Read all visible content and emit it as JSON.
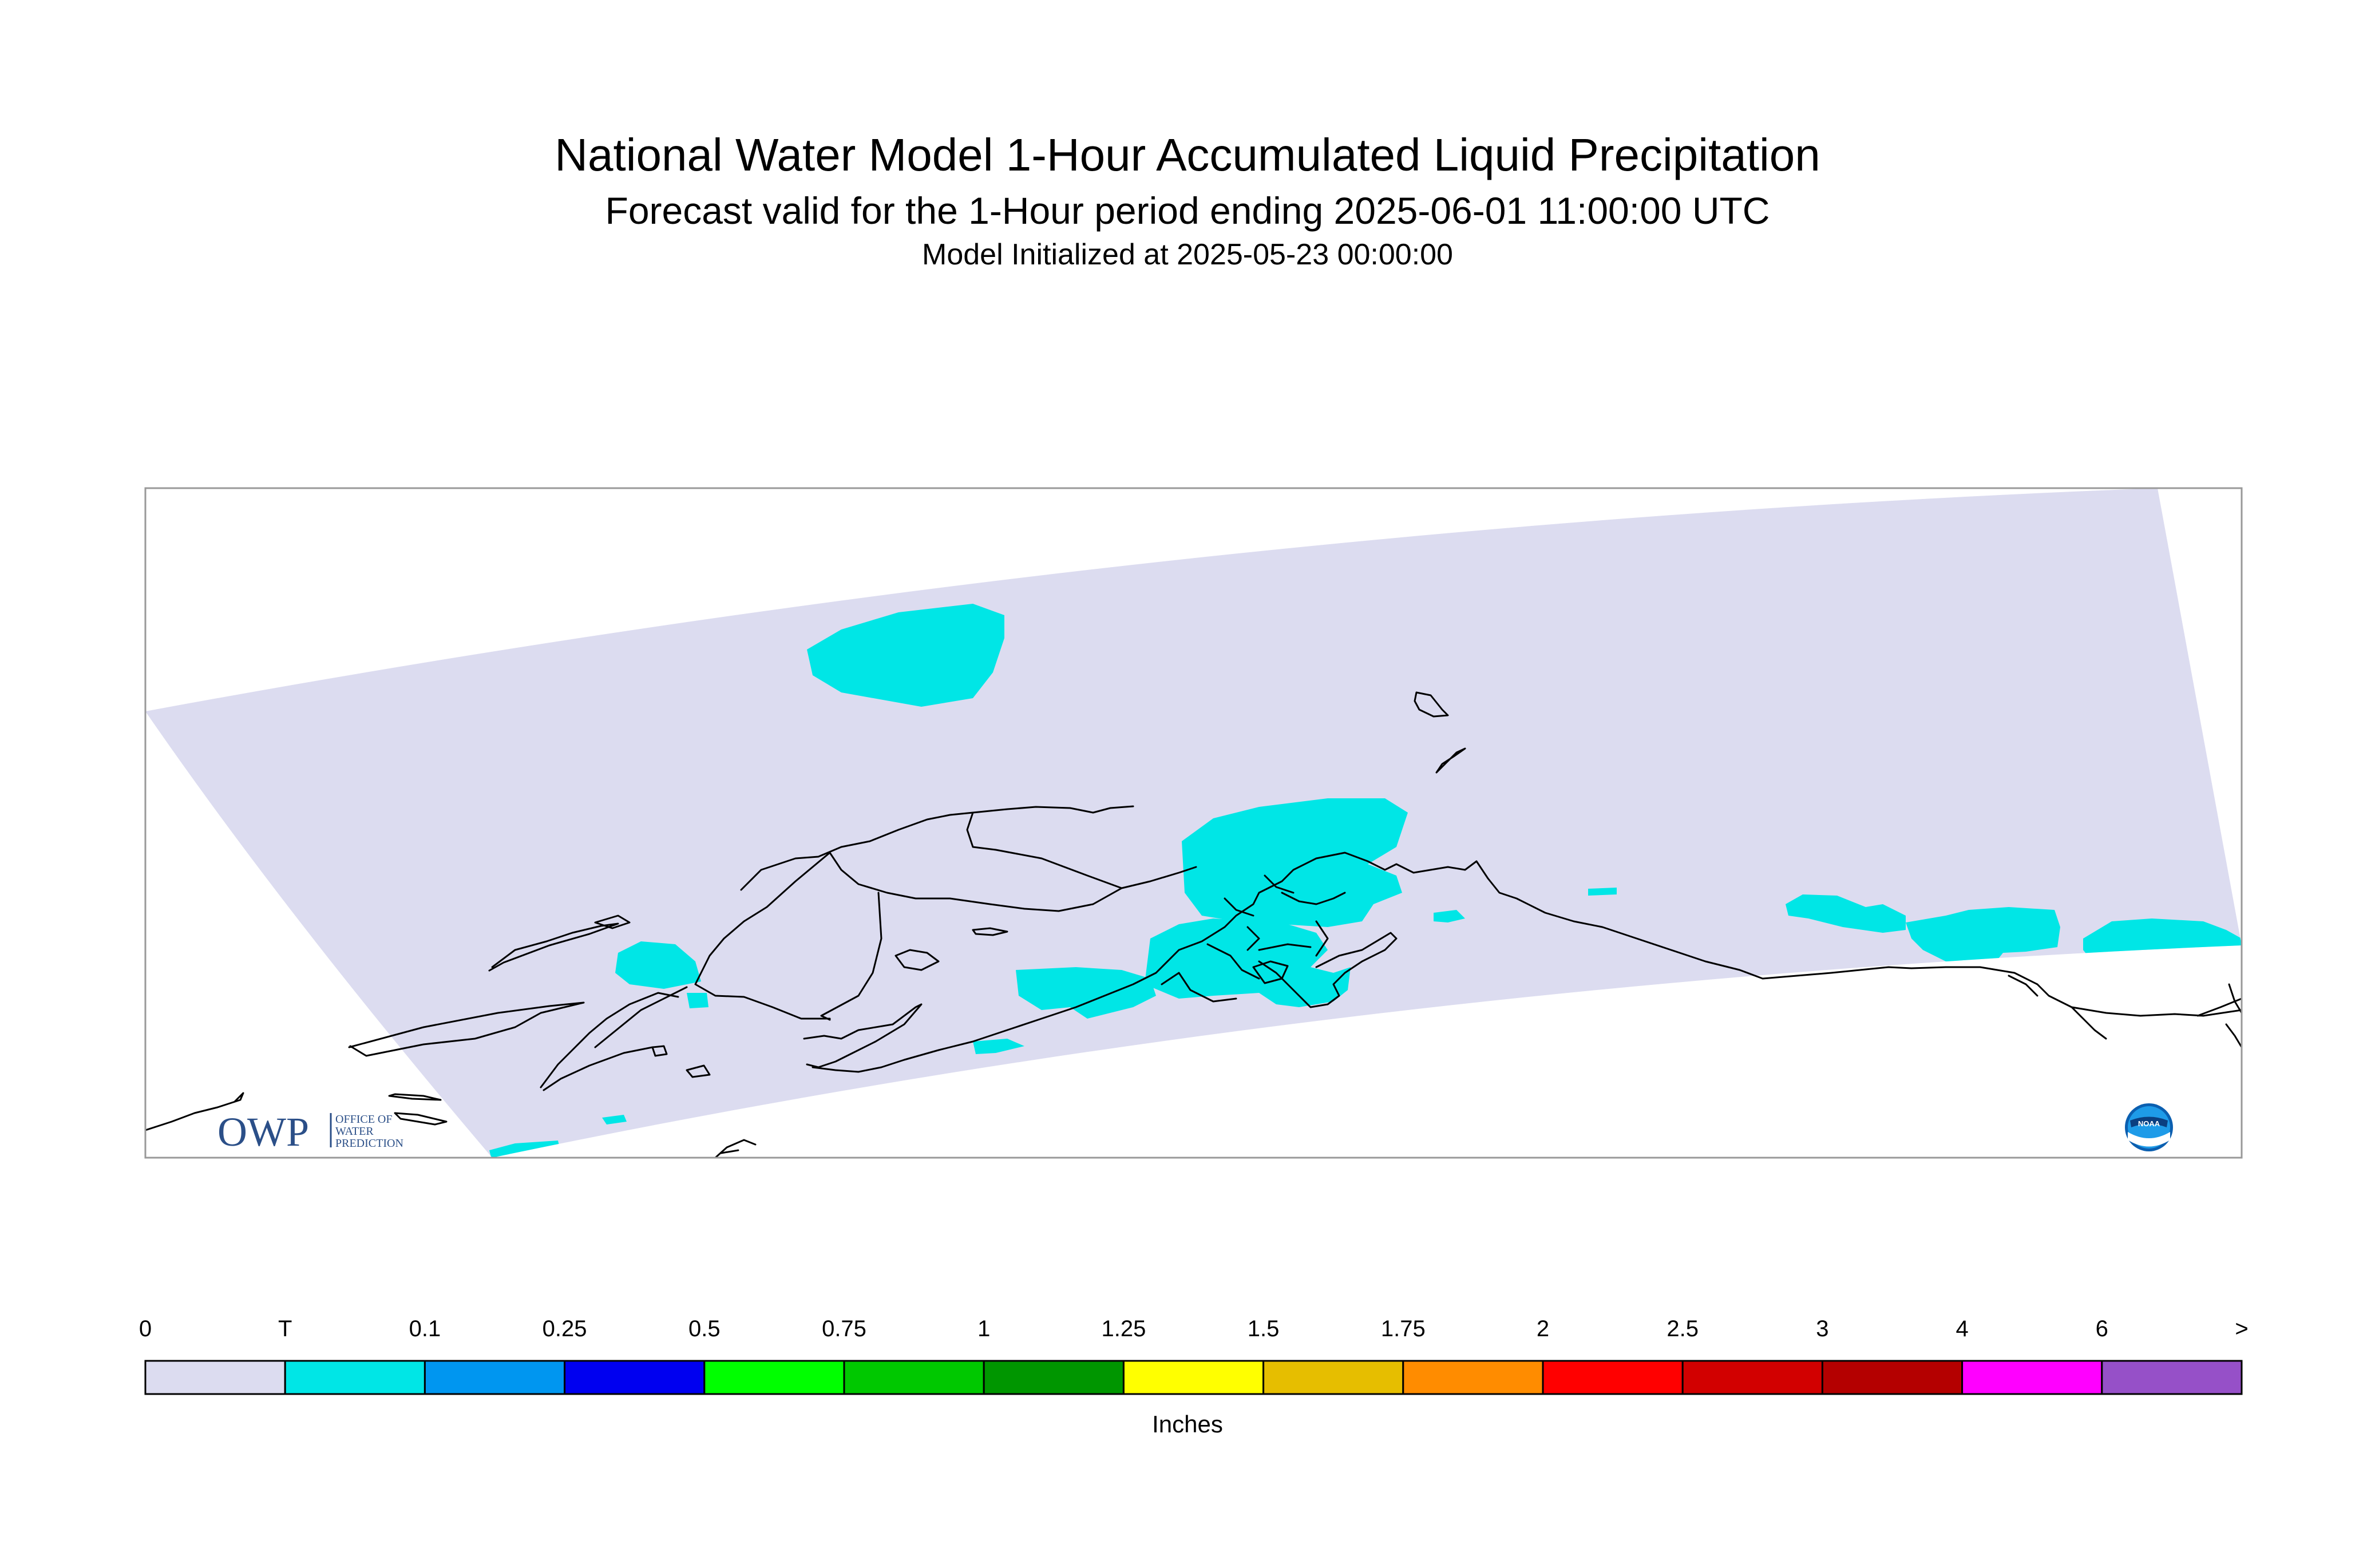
{
  "titles": {
    "main": "National Water Model 1-Hour Accumulated Liquid Precipitation",
    "forecast": "Forecast valid for the 1-Hour period ending 2025-06-01 11:00:00 UTC",
    "init": "Model Initialized at 2025-05-23 00:00:00"
  },
  "logos": {
    "owp_letters": "OWP",
    "owp_text": [
      "OFFICE OF",
      "WATER",
      "PREDICTION"
    ],
    "noaa_text": "NOAA"
  },
  "legend": {
    "units": "Inches",
    "tick_labels": [
      "0",
      "T",
      "0.1",
      "0.25",
      "0.5",
      "0.75",
      "1",
      "1.25",
      "1.5",
      "1.75",
      "2",
      "2.5",
      "3",
      "4",
      "6",
      ">"
    ],
    "colors": [
      "#dcdcf0",
      "#00e6e6",
      "#0096f0",
      "#0000f0",
      "#00ff00",
      "#00c800",
      "#009600",
      "#ffff00",
      "#e6be00",
      "#ff8c00",
      "#ff0000",
      "#d20000",
      "#b40000",
      "#ff00ff",
      "#9650c8"
    ]
  },
  "colors": {
    "domain_fill": "#dcdcf0",
    "trace_precip": "#00e6e6",
    "coastline": "#000000",
    "frame": "#999999"
  }
}
